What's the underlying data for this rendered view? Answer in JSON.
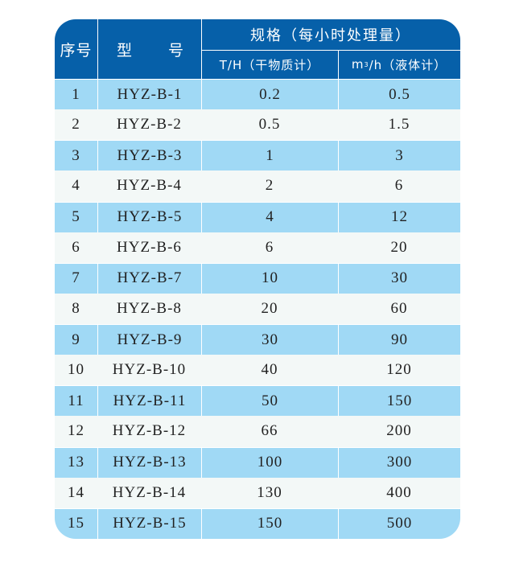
{
  "colors": {
    "header": "#0660a9",
    "row_blue": "#a0d9f5",
    "row_white": "#f3f8f7"
  },
  "header": {
    "col_index": "序号",
    "col_model_a": "型",
    "col_model_b": "号",
    "spec": "规格（每小时处理量）",
    "spec_dry": "T/H（干物质计）",
    "spec_liquid_unit": "m",
    "spec_liquid_sup": "3",
    "spec_liquid_rest": "/h（液体计）"
  },
  "rows": [
    {
      "no": "1",
      "model": "HYZ-B-1",
      "th": "0.2",
      "m3h": "0.5"
    },
    {
      "no": "2",
      "model": "HYZ-B-2",
      "th": "0.5",
      "m3h": "1.5"
    },
    {
      "no": "3",
      "model": "HYZ-B-3",
      "th": "1",
      "m3h": "3"
    },
    {
      "no": "4",
      "model": "HYZ-B-4",
      "th": "2",
      "m3h": "6"
    },
    {
      "no": "5",
      "model": "HYZ-B-5",
      "th": "4",
      "m3h": "12"
    },
    {
      "no": "6",
      "model": "HYZ-B-6",
      "th": "6",
      "m3h": "20"
    },
    {
      "no": "7",
      "model": "HYZ-B-7",
      "th": "10",
      "m3h": "30"
    },
    {
      "no": "8",
      "model": "HYZ-B-8",
      "th": "20",
      "m3h": "60"
    },
    {
      "no": "9",
      "model": "HYZ-B-9",
      "th": "30",
      "m3h": "90"
    },
    {
      "no": "10",
      "model": "HYZ-B-10",
      "th": "40",
      "m3h": "120"
    },
    {
      "no": "11",
      "model": "HYZ-B-11",
      "th": "50",
      "m3h": "150"
    },
    {
      "no": "12",
      "model": "HYZ-B-12",
      "th": "66",
      "m3h": "200"
    },
    {
      "no": "13",
      "model": "HYZ-B-13",
      "th": "100",
      "m3h": "300"
    },
    {
      "no": "14",
      "model": "HYZ-B-14",
      "th": "130",
      "m3h": "400"
    },
    {
      "no": "15",
      "model": "HYZ-B-15",
      "th": "150",
      "m3h": "500"
    }
  ]
}
